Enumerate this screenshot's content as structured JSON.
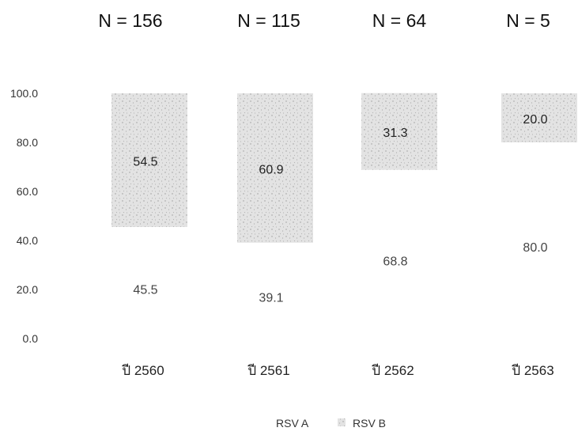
{
  "chart_data": {
    "type": "bar",
    "stacked": true,
    "categories": [
      "ปี 2560",
      "ปี 2561",
      "ปี 2562",
      "ปี 2563"
    ],
    "n_labels": [
      "N = 156",
      "N = 115",
      "N = 64",
      "N = 5"
    ],
    "series": [
      {
        "name": "RSV A",
        "values": [
          45.5,
          39.1,
          68.8,
          80.0
        ],
        "value_labels": [
          "45.5",
          "39.1",
          "68.8",
          "80.0"
        ],
        "color": "#ffffff"
      },
      {
        "name": "RSV B",
        "values": [
          54.5,
          60.9,
          31.3,
          20.0
        ],
        "value_labels": [
          "54.5",
          "60.9",
          "31.3",
          "20.0"
        ],
        "color": "#e3e3e3"
      }
    ],
    "yticks": [
      "0.0",
      "20.0",
      "40.0",
      "60.0",
      "80.0",
      "100.0"
    ],
    "ylim": [
      0,
      100
    ],
    "grid": false,
    "legend_position": "bottom"
  }
}
